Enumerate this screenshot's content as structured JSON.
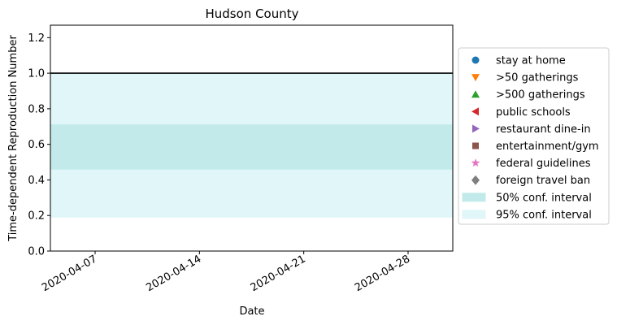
{
  "chart_data": {
    "type": "area",
    "title": "Hudson County",
    "xlabel": "Date",
    "ylabel": "Time-dependent Reproduction Number",
    "xlim": [
      "2020-04-04",
      "2020-05-01"
    ],
    "ylim": [
      0,
      1.27
    ],
    "x_ticks": [
      "2020-04-07",
      "2020-04-14",
      "2020-04-21",
      "2020-04-28"
    ],
    "y_ticks": [
      "0.0",
      "0.2",
      "0.4",
      "0.6",
      "0.8",
      "1.0",
      "1.2"
    ],
    "y_tick_values": [
      0.0,
      0.2,
      0.4,
      0.6,
      0.8,
      1.0,
      1.2
    ],
    "reference_line": 1.0,
    "intervals": [
      {
        "name": "95% conf. interval",
        "lower": 0.19,
        "upper": 1.0,
        "color": "#e0f6f8"
      },
      {
        "name": "50% conf. interval",
        "lower": 0.46,
        "upper": 0.71,
        "color": "#c3eaea"
      }
    ],
    "grid": false,
    "legend_position": "right",
    "legend": [
      {
        "label": "stay at home",
        "marker": "circle",
        "color": "#1f77b4"
      },
      {
        "label": ">50 gatherings",
        "marker": "triangle-down",
        "color": "#ff7f0e"
      },
      {
        "label": ">500 gatherings",
        "marker": "triangle-up",
        "color": "#2ca02c"
      },
      {
        "label": "public schools",
        "marker": "triangle-left",
        "color": "#d62728"
      },
      {
        "label": "restaurant dine-in",
        "marker": "triangle-right",
        "color": "#9467bd"
      },
      {
        "label": "entertainment/gym",
        "marker": "square",
        "color": "#8c564b"
      },
      {
        "label": "federal guidelines",
        "marker": "star",
        "color": "#e377c2"
      },
      {
        "label": "foreign travel ban",
        "marker": "diamond",
        "color": "#7f7f7f"
      },
      {
        "label": "50% conf. interval",
        "marker": "patch",
        "color": "#c3eaea"
      },
      {
        "label": "95% conf. interval",
        "marker": "patch",
        "color": "#e0f6f8"
      }
    ]
  }
}
